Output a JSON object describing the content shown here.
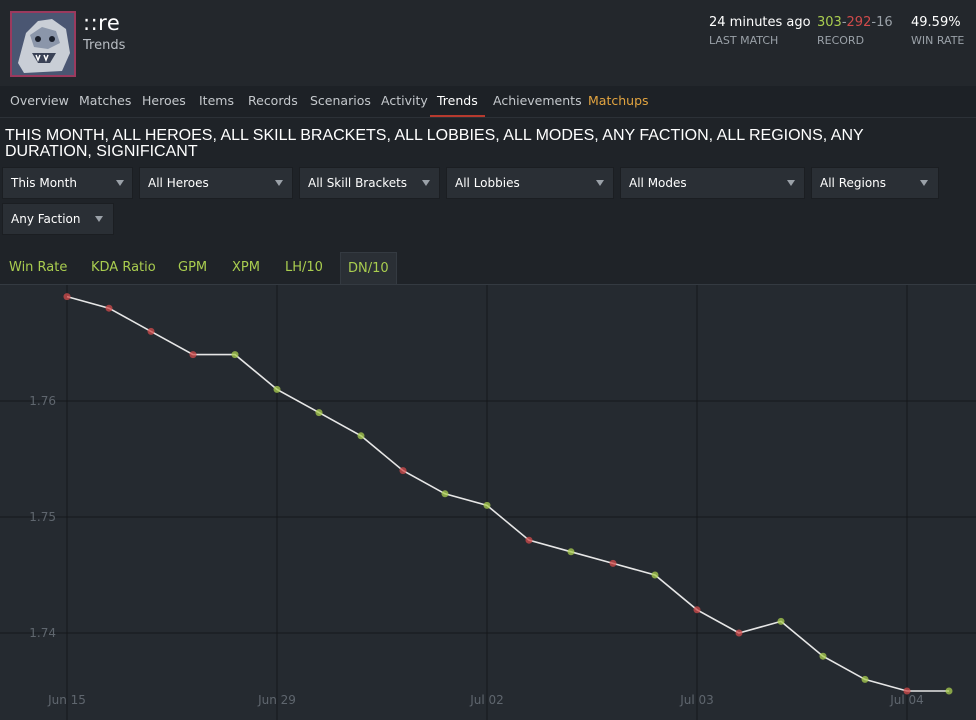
{
  "profile": {
    "player_name": "::re",
    "page_subtitle": "Trends"
  },
  "stats": {
    "last_match": {
      "value": "24 minutes ago",
      "label": "LAST MATCH"
    },
    "record": {
      "wins": "303",
      "losses": "292",
      "abandons": "16",
      "separator": "-",
      "label": "RECORD"
    },
    "win_rate": {
      "value": "49.59%",
      "label": "WIN RATE"
    }
  },
  "nav": {
    "items": [
      {
        "label": "Overview"
      },
      {
        "label": "Matches"
      },
      {
        "label": "Heroes"
      },
      {
        "label": "Items"
      },
      {
        "label": "Records"
      },
      {
        "label": "Scenarios"
      },
      {
        "label": "Activity"
      },
      {
        "label": "Trends",
        "active": true
      },
      {
        "label": "Achievements"
      },
      {
        "label": "Matchups",
        "highlight": true
      }
    ]
  },
  "filter_summary": "THIS MONTH, ALL HEROES, ALL SKILL BRACKETS, ALL LOBBIES, ALL MODES, ANY FACTION, ALL REGIONS, ANY DURATION, SIGNIFICANT",
  "filters": [
    {
      "label": "This Month"
    },
    {
      "label": "All Heroes"
    },
    {
      "label": "All Skill Brackets"
    },
    {
      "label": "All Lobbies"
    },
    {
      "label": "All Modes"
    },
    {
      "label": "All Regions"
    },
    {
      "label": "Any Faction"
    }
  ],
  "tabs": [
    {
      "label": "Win Rate"
    },
    {
      "label": "KDA Ratio"
    },
    {
      "label": "GPM"
    },
    {
      "label": "XPM"
    },
    {
      "label": "LH/10"
    },
    {
      "label": "DN/10",
      "active": true
    }
  ],
  "colors": {
    "win_marker": "#a9cd4f",
    "loss_marker": "#d14b4b",
    "line": "#e6e6e6",
    "active_tab_underline": "#b73a2e",
    "matchups": "#e2a440"
  },
  "chart_data": {
    "type": "line",
    "title": "",
    "xlabel": "",
    "ylabel": "",
    "y_ticks": [
      1.74,
      1.75,
      1.76
    ],
    "ylim": [
      1.7325,
      1.77
    ],
    "x_tick_labels": [
      {
        "label": "Jun 15",
        "index": 0
      },
      {
        "label": "Jun 29",
        "index": 5
      },
      {
        "label": "Jul 02",
        "index": 10
      },
      {
        "label": "Jul 03",
        "index": 15
      },
      {
        "label": "Jul 04",
        "index": 20
      }
    ],
    "grid": true,
    "series": [
      {
        "values": [
          1.769,
          1.768,
          1.766,
          1.764,
          1.764,
          1.761,
          1.759,
          1.757,
          1.754,
          1.752,
          1.751,
          1.748,
          1.747,
          1.746,
          1.745,
          1.742,
          1.74,
          1.741,
          1.738,
          1.736,
          1.735,
          1.735
        ],
        "outcomes": [
          "loss",
          "loss",
          "loss",
          "loss",
          "win",
          "win",
          "win",
          "win",
          "loss",
          "win",
          "win",
          "loss",
          "win",
          "loss",
          "win",
          "loss",
          "loss",
          "win",
          "win",
          "win",
          "loss",
          "win"
        ]
      }
    ]
  }
}
